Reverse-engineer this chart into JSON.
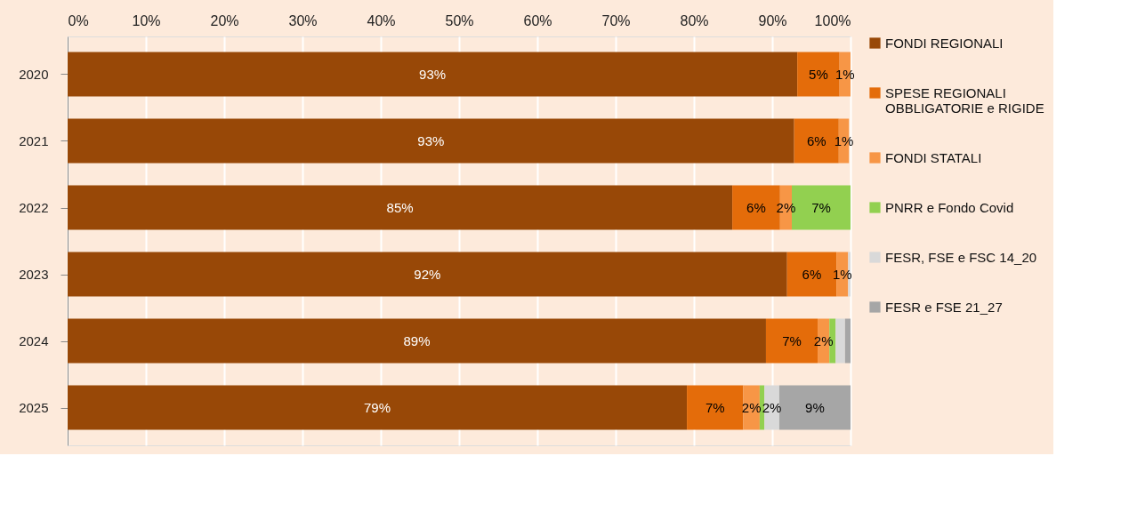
{
  "chart_data": {
    "type": "bar",
    "orientation": "horizontal",
    "stacked": true,
    "categories": [
      "2020",
      "2021",
      "2022",
      "2023",
      "2024",
      "2025"
    ],
    "series": [
      {
        "name": "FONDI REGIONALI",
        "color": "#984807",
        "values": [
          93.2,
          92.8,
          84.9,
          91.9,
          89.2,
          79.1
        ],
        "value_labels": [
          "93%",
          "93%",
          "85%",
          "92%",
          "89%",
          "79%"
        ]
      },
      {
        "name": "SPESE REGIONALI OBBLIGATORIE e RIGIDE",
        "color": "#e46c0a",
        "values": [
          5.4,
          5.7,
          6.1,
          6.3,
          6.6,
          7.2
        ],
        "value_labels": [
          "5%",
          "6%",
          "6%",
          "6%",
          "7%",
          "7%"
        ]
      },
      {
        "name": "FONDI STATALI",
        "color": "#f79646",
        "values": [
          1.4,
          1.3,
          1.5,
          1.5,
          1.5,
          2.1
        ],
        "value_labels": [
          "1%",
          "1%",
          "2%",
          "1%",
          "2%",
          "2%"
        ]
      },
      {
        "name": "PNRR e Fondo Covid",
        "color": "#92d050",
        "values": [
          0,
          0,
          7.5,
          0,
          0.8,
          0.6
        ],
        "value_labels": [
          null,
          null,
          "7%",
          null,
          null,
          null
        ]
      },
      {
        "name": "FESR, FSE e FSC 14_20",
        "color": "#d9d9d9",
        "values": [
          0,
          0,
          0,
          0.3,
          1.2,
          1.9
        ],
        "value_labels": [
          null,
          null,
          null,
          null,
          null,
          "2%"
        ]
      },
      {
        "name": "FESR e FSE 21_27",
        "color": "#a6a6a6",
        "values": [
          0,
          0,
          0,
          0,
          0.7,
          9.1
        ],
        "value_labels": [
          null,
          null,
          null,
          null,
          null,
          "9%"
        ]
      }
    ],
    "xlim": [
      0,
      100
    ],
    "xticks": [
      {
        "value": 0,
        "label": "0%"
      },
      {
        "value": 10,
        "label": "10%"
      },
      {
        "value": 20,
        "label": "20%"
      },
      {
        "value": 30,
        "label": "30%"
      },
      {
        "value": 40,
        "label": "40%"
      },
      {
        "value": 50,
        "label": "50%"
      },
      {
        "value": 60,
        "label": "60%"
      },
      {
        "value": 70,
        "label": "70%"
      },
      {
        "value": 80,
        "label": "80%"
      },
      {
        "value": 90,
        "label": "90%"
      },
      {
        "value": 100,
        "label": "100%"
      }
    ],
    "grid": "x",
    "legend": "right"
  }
}
